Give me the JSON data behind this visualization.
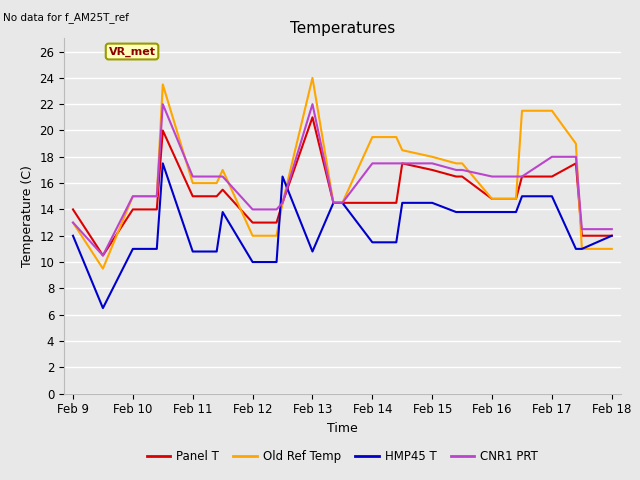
{
  "title": "Temperatures",
  "xlabel": "Time",
  "ylabel": "Temperature (C)",
  "top_left_text": "No data for f_AM25T_ref",
  "annotation_text": "VR_met",
  "ylim": [
    0,
    27
  ],
  "xlim": [
    -0.15,
    9.15
  ],
  "background_color": "#e8e8e8",
  "grid_color": "#ffffff",
  "series": {
    "Panel T": {
      "color": "#dd0000",
      "x": [
        0,
        0.5,
        1.0,
        1.4,
        1.5,
        2.0,
        2.4,
        2.5,
        3.0,
        3.4,
        3.5,
        4.0,
        4.35,
        4.5,
        5.0,
        5.4,
        5.5,
        6.0,
        6.4,
        6.5,
        7.0,
        7.4,
        7.5,
        8.0,
        8.4,
        8.5,
        9.0
      ],
      "y": [
        14.0,
        10.5,
        14.0,
        14.0,
        20.0,
        15.0,
        15.0,
        15.5,
        13.0,
        13.0,
        14.5,
        21.0,
        14.5,
        14.5,
        14.5,
        14.5,
        17.5,
        17.0,
        16.5,
        16.5,
        14.8,
        14.8,
        16.5,
        16.5,
        17.5,
        12.0,
        12.0
      ]
    },
    "Old Ref Temp": {
      "color": "#ffa500",
      "x": [
        0,
        0.5,
        1.0,
        1.4,
        1.5,
        2.0,
        2.4,
        2.5,
        3.0,
        3.4,
        3.5,
        4.0,
        4.35,
        4.5,
        5.0,
        5.4,
        5.5,
        6.0,
        6.4,
        6.5,
        7.0,
        7.4,
        7.5,
        8.0,
        8.4,
        8.5,
        9.0
      ],
      "y": [
        13.0,
        9.5,
        15.0,
        15.0,
        23.5,
        16.0,
        16.0,
        17.0,
        12.0,
        12.0,
        14.5,
        24.0,
        14.5,
        14.5,
        19.5,
        19.5,
        18.5,
        18.0,
        17.5,
        17.5,
        14.8,
        14.8,
        21.5,
        21.5,
        19.0,
        11.0,
        11.0
      ]
    },
    "HMP45 T": {
      "color": "#0000cc",
      "x": [
        0,
        0.5,
        1.0,
        1.4,
        1.5,
        2.0,
        2.4,
        2.5,
        3.0,
        3.4,
        3.5,
        4.0,
        4.35,
        4.5,
        5.0,
        5.4,
        5.5,
        6.0,
        6.4,
        6.5,
        7.0,
        7.4,
        7.5,
        8.0,
        8.4,
        8.5,
        9.0
      ],
      "y": [
        12.0,
        6.5,
        11.0,
        11.0,
        17.5,
        10.8,
        10.8,
        13.8,
        10.0,
        10.0,
        16.5,
        10.8,
        14.5,
        14.5,
        11.5,
        11.5,
        14.5,
        14.5,
        13.8,
        13.8,
        13.8,
        13.8,
        15.0,
        15.0,
        11.0,
        11.0,
        12.0
      ]
    },
    "CNR1 PRT": {
      "color": "#bb44cc",
      "x": [
        0,
        0.5,
        1.0,
        1.4,
        1.5,
        2.0,
        2.4,
        2.5,
        3.0,
        3.4,
        3.5,
        4.0,
        4.35,
        4.5,
        5.0,
        5.4,
        5.5,
        6.0,
        6.4,
        6.5,
        7.0,
        7.4,
        7.5,
        8.0,
        8.4,
        8.5,
        9.0
      ],
      "y": [
        13.0,
        10.5,
        15.0,
        15.0,
        22.0,
        16.5,
        16.5,
        16.5,
        14.0,
        14.0,
        14.5,
        22.0,
        14.5,
        14.5,
        17.5,
        17.5,
        17.5,
        17.5,
        17.0,
        17.0,
        16.5,
        16.5,
        16.5,
        18.0,
        18.0,
        12.5,
        12.5
      ]
    }
  },
  "xtick_labels": [
    "Feb 9",
    "Feb 10",
    "Feb 11",
    "Feb 12",
    "Feb 13",
    "Feb 14",
    "Feb 15",
    "Feb 16",
    "Feb 17",
    "Feb 18"
  ],
  "xtick_positions": [
    0,
    1,
    2,
    3,
    4,
    5,
    6,
    7,
    8,
    9
  ],
  "ytick_positions": [
    0,
    2,
    4,
    6,
    8,
    10,
    12,
    14,
    16,
    18,
    20,
    22,
    24,
    26
  ],
  "legend_entries": [
    "Panel T",
    "Old Ref Temp",
    "HMP45 T",
    "CNR1 PRT"
  ],
  "legend_colors": [
    "#dd0000",
    "#ffa500",
    "#0000cc",
    "#bb44cc"
  ]
}
